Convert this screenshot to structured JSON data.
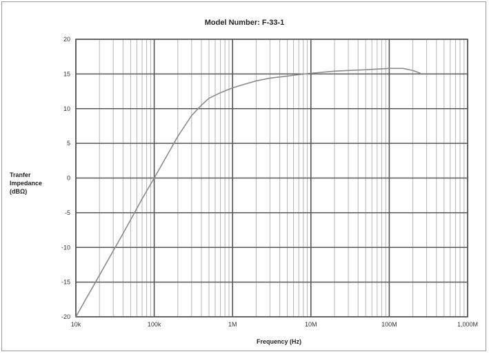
{
  "chart_data": {
    "type": "line",
    "title": "Model Number: F-33-1",
    "ylabel_lines": [
      "Tranfer",
      "Impedance",
      "(dBΩ)"
    ],
    "xlabel": "Frequency (Hz)",
    "x_scale": "log",
    "xlim": [
      10000,
      1000000000
    ],
    "ylim": [
      -20,
      20
    ],
    "x_tick_values": [
      10000,
      100000,
      1000000,
      10000000,
      100000000,
      1000000000
    ],
    "x_tick_labels": [
      "10k",
      "100k",
      "1M",
      "10M",
      "100M",
      "1,000M"
    ],
    "y_tick_values": [
      20,
      15,
      10,
      5,
      0,
      -5,
      -10,
      -15,
      -20
    ],
    "y_tick_labels": [
      "20",
      "15",
      "10",
      "5",
      "0",
      "-5",
      "-10",
      "-15",
      "-20"
    ],
    "grid": true,
    "series": [
      {
        "x": [
          10000,
          20000,
          40000,
          70000,
          100000,
          150000,
          200000,
          300000,
          400000,
          500000,
          700000,
          1000000,
          1500000,
          2000000,
          3000000,
          5000000,
          7000000,
          10000000,
          20000000,
          30000000,
          50000000,
          70000000,
          100000000,
          150000000,
          200000000,
          250000000
        ],
        "y": [
          -20,
          -14,
          -8,
          -3,
          0,
          3.5,
          6,
          9,
          10.5,
          11.5,
          12.3,
          13,
          13.6,
          14,
          14.4,
          14.7,
          14.9,
          15.1,
          15.4,
          15.5,
          15.6,
          15.7,
          15.8,
          15.8,
          15.5,
          15.1
        ]
      }
    ]
  },
  "colors": {
    "line": "#8a8a8a",
    "grid_major": "#555555",
    "grid_minor": "#b5b5b5"
  }
}
